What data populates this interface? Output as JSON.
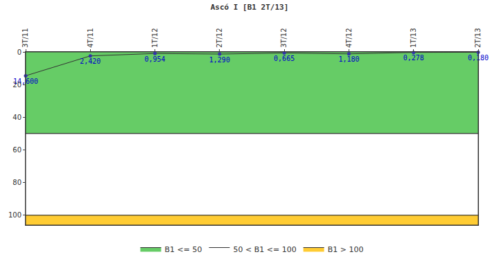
{
  "chart_data": {
    "type": "line",
    "title": "Ascó I [B1 2T/13]",
    "categories": [
      "3T/11",
      "4T/11",
      "1T/12",
      "2T/12",
      "3T/12",
      "4T/12",
      "1T/13",
      "2T/13"
    ],
    "series": [
      {
        "values": [
          14.6,
          2.42,
          0.954,
          1.29,
          0.665,
          1.18,
          0.278,
          0.18
        ],
        "value_labels": [
          "14,600",
          "2,420",
          "0,954",
          "1,290",
          "0,665",
          "1,180",
          "0,278",
          "0,180"
        ],
        "color": "#333333",
        "marker": "circle"
      }
    ],
    "bands": [
      {
        "name": "B1 <= 50",
        "color": "#66cc66",
        "from": 0,
        "to": 50
      },
      {
        "name": "50 < B1 <= 100",
        "color": "#ffffff",
        "from": 50,
        "to": 100
      },
      {
        "name": "B1 > 100",
        "color": "#ffcc33",
        "from": 100,
        "to": 106
      }
    ],
    "ylim": [
      106,
      0
    ],
    "yticks": [
      0,
      20,
      40,
      60,
      80,
      100
    ],
    "grid": false,
    "legend": "bottom",
    "data_labels": true
  }
}
